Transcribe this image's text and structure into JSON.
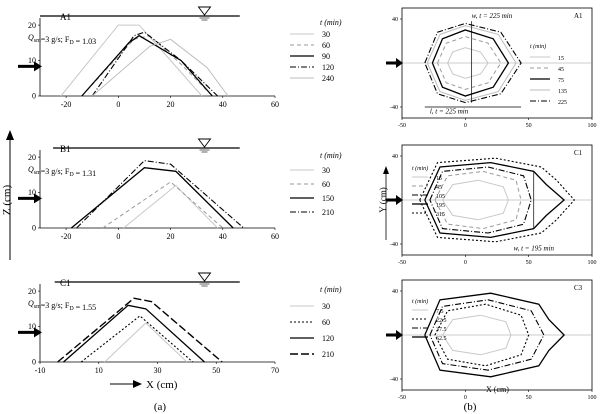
{
  "labels": {
    "panel_a": "(a)",
    "panel_b": "(b)"
  },
  "arrow_color": "#000000",
  "chart_data": [
    {
      "id": "A1",
      "type": "line",
      "title": "A1",
      "note": "Q",
      "note_parts": {
        "q": "Q",
        "sub": "sm",
        "eq": "=3 g/s; F",
        "fsub": "D",
        "val": " = 1.03"
      },
      "xlim": [
        -30,
        60
      ],
      "ylim": [
        0,
        22
      ],
      "xticks": [
        -20,
        0,
        20,
        40,
        60
      ],
      "yticks": [
        0,
        10,
        20
      ],
      "legend_title": "t (min)",
      "series": [
        {
          "name": "30",
          "color": "#c8c8c8",
          "dash": "",
          "width": 1,
          "x": [
            -22,
            0,
            8,
            20,
            32
          ],
          "y": [
            0,
            20,
            20,
            10,
            0
          ]
        },
        {
          "name": "60",
          "color": "#9a9a9a",
          "dash": "4,3",
          "width": 1,
          "x": [
            -14,
            6,
            12,
            24,
            36
          ],
          "y": [
            0,
            16,
            17,
            9,
            0
          ]
        },
        {
          "name": "90",
          "color": "#000000",
          "dash": "",
          "width": 1.3,
          "x": [
            -14,
            4,
            8,
            24,
            36
          ],
          "y": [
            0,
            15,
            17,
            10,
            0
          ]
        },
        {
          "name": "120",
          "color": "#000000",
          "dash": "6,2,1,2",
          "width": 1.1,
          "x": [
            -10,
            6,
            10,
            24,
            38
          ],
          "y": [
            0,
            17,
            18,
            10,
            0
          ]
        },
        {
          "name": "240",
          "color": "#bdbdbd",
          "dash": "",
          "width": 1,
          "x": [
            -10,
            12,
            20,
            34,
            42
          ],
          "y": [
            0,
            14,
            16,
            8,
            0
          ]
        }
      ]
    },
    {
      "id": "B1",
      "type": "line",
      "title": "B1",
      "note_parts": {
        "q": "Q",
        "sub": "sm",
        "eq": "=3 g/s; F",
        "fsub": "D",
        "val": " = 1.31"
      },
      "xlim": [
        -30,
        60
      ],
      "ylim": [
        0,
        22
      ],
      "xticks": [
        -20,
        0,
        20,
        40,
        60
      ],
      "yticks": [
        0,
        10,
        20
      ],
      "legend_title": "t (min)",
      "series": [
        {
          "name": "30",
          "color": "#c8c8c8",
          "dash": "",
          "width": 1,
          "x": [
            2,
            22,
            38
          ],
          "y": [
            0,
            12,
            0
          ]
        },
        {
          "name": "60",
          "color": "#9a9a9a",
          "dash": "4,3",
          "width": 1,
          "x": [
            -6,
            20,
            40
          ],
          "y": [
            0,
            13,
            0
          ]
        },
        {
          "name": "150",
          "color": "#000000",
          "dash": "",
          "width": 1.3,
          "x": [
            -18,
            10,
            22,
            44
          ],
          "y": [
            0,
            17,
            16,
            0
          ]
        },
        {
          "name": "210",
          "color": "#000000",
          "dash": "6,2,1,2",
          "width": 1.1,
          "x": [
            -16,
            10,
            20,
            48
          ],
          "y": [
            0,
            19,
            18,
            0
          ]
        }
      ]
    },
    {
      "id": "C1",
      "type": "line",
      "title": "C1",
      "note_parts": {
        "q": "Q",
        "sub": "sm",
        "eq": "=3 g/s; F",
        "fsub": "D",
        "val": " = 1.55"
      },
      "xlim": [
        -10,
        70
      ],
      "ylim": [
        0,
        22
      ],
      "xticks": [
        -10,
        10,
        30,
        50,
        70
      ],
      "yticks": [
        0,
        10,
        20
      ],
      "legend_title": "t (min)",
      "series": [
        {
          "name": "30",
          "color": "#c8c8c8",
          "dash": "",
          "width": 1,
          "x": [
            12,
            26,
            40
          ],
          "y": [
            0,
            11,
            0
          ]
        },
        {
          "name": "60",
          "color": "#000000",
          "dash": "2,2",
          "width": 1.1,
          "x": [
            4,
            24,
            42
          ],
          "y": [
            0,
            13,
            0
          ]
        },
        {
          "name": "120",
          "color": "#000000",
          "dash": "",
          "width": 1.3,
          "x": [
            -2,
            20,
            26,
            46
          ],
          "y": [
            0,
            16,
            15,
            0
          ]
        },
        {
          "name": "210",
          "color": "#000000",
          "dash": "8,3",
          "width": 1.4,
          "x": [
            -4,
            22,
            28,
            52
          ],
          "y": [
            0,
            18,
            17,
            0
          ]
        }
      ]
    },
    {
      "id": "A1-plan",
      "type": "line",
      "title": "A1",
      "xlim": [
        -50,
        100
      ],
      "ylim": [
        -50,
        50
      ],
      "xticks": [
        -50,
        0,
        50,
        100
      ],
      "yticks": [
        -40,
        0,
        40
      ],
      "legend_title": "t (min)",
      "annotations": [
        {
          "text": "w, t = 225 min"
        },
        {
          "text": "l, t = 225 min"
        }
      ],
      "series": [
        {
          "name": "15",
          "color": "#c8c8c8",
          "dash": "",
          "width": 1,
          "x": [
            -14,
            -10,
            0,
            12,
            18,
            12,
            0,
            -10,
            -14
          ],
          "y": [
            0,
            10,
            14,
            10,
            0,
            -10,
            -14,
            -10,
            0
          ]
        },
        {
          "name": "45",
          "color": "#9a9a9a",
          "dash": "4,3",
          "width": 1,
          "x": [
            -22,
            -15,
            0,
            18,
            28,
            18,
            0,
            -15,
            -22
          ],
          "y": [
            0,
            18,
            24,
            18,
            0,
            -18,
            -24,
            -18,
            0
          ]
        },
        {
          "name": "75",
          "color": "#000000",
          "dash": "",
          "width": 1.3,
          "x": [
            -26,
            -18,
            0,
            22,
            34,
            22,
            0,
            -18,
            -26
          ],
          "y": [
            0,
            22,
            30,
            22,
            0,
            -22,
            -30,
            -22,
            0
          ]
        },
        {
          "name": "135",
          "color": "#bdbdbd",
          "dash": "",
          "width": 1,
          "x": [
            -30,
            -20,
            0,
            26,
            40,
            26,
            0,
            -20,
            -30
          ],
          "y": [
            0,
            26,
            34,
            26,
            0,
            -26,
            -34,
            -26,
            0
          ]
        },
        {
          "name": "225",
          "color": "#000000",
          "dash": "6,2,1,2",
          "width": 1.1,
          "x": [
            -32,
            -22,
            0,
            28,
            44,
            28,
            0,
            -22,
            -32
          ],
          "y": [
            0,
            28,
            36,
            28,
            0,
            -28,
            -36,
            -28,
            0
          ]
        }
      ]
    },
    {
      "id": "C1-plan",
      "type": "line",
      "title": "C1",
      "xlim": [
        -50,
        100
      ],
      "ylim": [
        -50,
        50
      ],
      "xticks": [
        -50,
        0,
        50,
        100
      ],
      "yticks": [
        -40,
        0,
        40
      ],
      "legend_title": "t (min)",
      "annotations": [
        {
          "text": "w, t = 195 min"
        }
      ],
      "series": [
        {
          "name": "15",
          "color": "#c8c8c8",
          "dash": "",
          "width": 1,
          "x": [
            -18,
            -10,
            10,
            30,
            34,
            30,
            10,
            -10,
            -18
          ],
          "y": [
            0,
            14,
            18,
            12,
            0,
            -12,
            -18,
            -14,
            0
          ]
        },
        {
          "name": "45",
          "color": "#9a9a9a",
          "dash": "4,3",
          "width": 1,
          "x": [
            -24,
            -14,
            14,
            40,
            44,
            40,
            14,
            -14,
            -24
          ],
          "y": [
            0,
            22,
            26,
            18,
            0,
            -18,
            -26,
            -22,
            0
          ]
        },
        {
          "name": "105",
          "color": "#000000",
          "dash": "6,2,1,2",
          "width": 1.1,
          "x": [
            -28,
            -18,
            18,
            46,
            52,
            46,
            18,
            -18,
            -28
          ],
          "y": [
            0,
            26,
            30,
            22,
            0,
            -22,
            -30,
            -26,
            0
          ]
        },
        {
          "name": "195",
          "color": "#000000",
          "dash": "",
          "width": 1.3,
          "x": [
            -32,
            -20,
            20,
            54,
            64,
            78,
            64,
            54,
            20,
            -20,
            -32
          ],
          "y": [
            0,
            30,
            34,
            26,
            14,
            0,
            -14,
            -26,
            -34,
            -30,
            0
          ]
        },
        {
          "name": "315",
          "color": "#000000",
          "dash": "2,2",
          "width": 1.1,
          "x": [
            -36,
            -22,
            24,
            60,
            72,
            86,
            72,
            60,
            24,
            -22,
            -36
          ],
          "y": [
            0,
            34,
            38,
            30,
            18,
            0,
            -18,
            -30,
            -38,
            -34,
            0
          ]
        }
      ]
    },
    {
      "id": "C3-plan",
      "type": "line",
      "title": "C3",
      "xlim": [
        -50,
        100
      ],
      "ylim": [
        -50,
        50
      ],
      "xticks": [
        -50,
        0,
        50,
        100
      ],
      "yticks": [
        -40,
        0,
        40
      ],
      "legend_title": "t (min)",
      "series": [
        {
          "name": "7.5",
          "color": "#c8c8c8",
          "dash": "",
          "width": 1,
          "x": [
            -18,
            -10,
            12,
            32,
            36,
            32,
            12,
            -10,
            -18
          ],
          "y": [
            0,
            14,
            18,
            12,
            0,
            -12,
            -18,
            -14,
            0
          ]
        },
        {
          "name": "22.5",
          "color": "#000000",
          "dash": "2,2",
          "width": 1.1,
          "x": [
            -24,
            -14,
            16,
            44,
            50,
            44,
            16,
            -14,
            -24
          ],
          "y": [
            0,
            22,
            28,
            18,
            0,
            -18,
            -28,
            -22,
            0
          ]
        },
        {
          "name": "37.5",
          "color": "#000000",
          "dash": "6,2,1,2",
          "width": 1.1,
          "x": [
            -28,
            -18,
            18,
            52,
            62,
            52,
            18,
            -18,
            -28
          ],
          "y": [
            0,
            26,
            32,
            22,
            0,
            -22,
            -32,
            -26,
            0
          ]
        },
        {
          "name": "62.5",
          "color": "#000000",
          "dash": "",
          "width": 1.3,
          "x": [
            -32,
            -20,
            20,
            58,
            66,
            78,
            66,
            58,
            20,
            -20,
            -32
          ],
          "y": [
            0,
            32,
            38,
            28,
            14,
            0,
            -14,
            -28,
            -38,
            -32,
            0
          ]
        }
      ]
    }
  ],
  "axes_labels": {
    "z": "Z (cm)",
    "x": "X (cm)",
    "y_plan": "Y (cm)",
    "x_plan": "X (cm)"
  }
}
